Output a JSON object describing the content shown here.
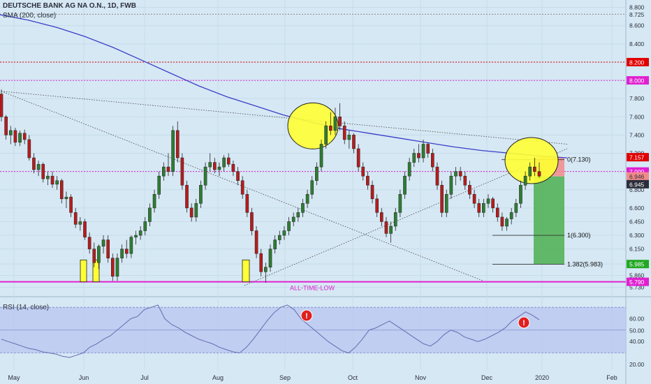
{
  "header": {
    "title": "DEUTSCHE BANK AG NA O.N., 1D, FWB",
    "sma_label": "SMA (200, close)",
    "rsi_label": "RSI (14, close)"
  },
  "colors": {
    "background": "#d6e8f4",
    "candle_up": "#2e7d32",
    "candle_down": "#b71c1c",
    "sma": "#3a3fc8",
    "magenta": "#e020d0",
    "red_level": "#e00000",
    "highlight_yellow": "#ffff33",
    "target_green": "#4caf50",
    "stop_red": "#f28b8b",
    "rsi_line": "#6a6ab0",
    "rsi_band": "#b9c7f0"
  },
  "chart_data": [
    {
      "type": "candlestick",
      "ylim": [
        5.68,
        8.82
      ],
      "y_ticks": [
        "8.800",
        "8.600",
        "8.400",
        "8.200",
        "8.000",
        "7.800",
        "7.600",
        "7.400",
        "7.200",
        "7.000",
        "6.800",
        "6.600",
        "6.450",
        "6.300",
        "6.150",
        "5.985",
        "5.860",
        "5.730"
      ],
      "x_ticks": [
        "May",
        "Jun",
        "Jul",
        "Aug",
        "Sep",
        "Oct",
        "Nov",
        "Dec",
        "2020",
        "Feb"
      ],
      "price_badges": [
        {
          "value": "8.725",
          "style": "plain"
        },
        {
          "value": "8.200",
          "style": "red"
        },
        {
          "value": "8.000",
          "style": "magenta"
        },
        {
          "value": "7.157",
          "style": "red"
        },
        {
          "value": "7.000",
          "style": "magenta"
        },
        {
          "value": "6.946",
          "style": "pink"
        },
        {
          "value": "6.945",
          "style": "dark"
        },
        {
          "value": "5.985",
          "style": "green"
        },
        {
          "value": "5.790",
          "style": "magenta"
        }
      ],
      "horizontal_levels": [
        {
          "price": 8.725,
          "style": "dotted-gray"
        },
        {
          "price": 8.2,
          "style": "dotted-red"
        },
        {
          "price": 8.0,
          "style": "dotted-magenta"
        },
        {
          "price": 7.0,
          "style": "dotted-magenta"
        },
        {
          "price": 5.79,
          "style": "solid-magenta"
        }
      ],
      "fib_labels": [
        {
          "label": "0(7.130)",
          "price": 7.13
        },
        {
          "label": "1(6.300)",
          "price": 6.3
        },
        {
          "label": "1.382(5.983)",
          "price": 5.983
        }
      ],
      "annotation": "ALL-TIME-LOW",
      "candles": [
        [
          7.85,
          7.9,
          7.55,
          7.6
        ],
        [
          7.6,
          7.62,
          7.35,
          7.4
        ],
        [
          7.4,
          7.5,
          7.3,
          7.45
        ],
        [
          7.45,
          7.48,
          7.28,
          7.32
        ],
        [
          7.32,
          7.45,
          7.28,
          7.42
        ],
        [
          7.42,
          7.46,
          7.3,
          7.35
        ],
        [
          7.35,
          7.4,
          7.12,
          7.15
        ],
        [
          7.15,
          7.2,
          6.98,
          7.02
        ],
        [
          7.02,
          7.12,
          6.95,
          7.08
        ],
        [
          7.08,
          7.1,
          6.88,
          6.92
        ],
        [
          6.92,
          7.0,
          6.85,
          6.95
        ],
        [
          6.95,
          7.0,
          6.82,
          6.86
        ],
        [
          6.86,
          6.95,
          6.8,
          6.9
        ],
        [
          6.9,
          6.92,
          6.65,
          6.7
        ],
        [
          6.7,
          6.78,
          6.6,
          6.72
        ],
        [
          6.72,
          6.75,
          6.5,
          6.55
        ],
        [
          6.55,
          6.6,
          6.38,
          6.42
        ],
        [
          6.42,
          6.5,
          6.35,
          6.45
        ],
        [
          6.45,
          6.48,
          6.25,
          6.28
        ],
        [
          6.28,
          6.33,
          6.1,
          6.15
        ],
        [
          6.15,
          6.22,
          5.95,
          6.0
        ],
        [
          6.0,
          6.2,
          5.93,
          6.18
        ],
        [
          6.18,
          6.3,
          6.1,
          6.25
        ],
        [
          6.25,
          6.3,
          6.0,
          6.05
        ],
        [
          6.05,
          6.1,
          5.8,
          5.85
        ],
        [
          5.85,
          6.1,
          5.8,
          6.05
        ],
        [
          6.05,
          6.2,
          6.0,
          6.15
        ],
        [
          6.15,
          6.25,
          6.05,
          6.1
        ],
        [
          6.1,
          6.3,
          6.05,
          6.28
        ],
        [
          6.28,
          6.35,
          6.2,
          6.3
        ],
        [
          6.3,
          6.4,
          6.25,
          6.35
        ],
        [
          6.35,
          6.5,
          6.3,
          6.45
        ],
        [
          6.45,
          6.65,
          6.4,
          6.6
        ],
        [
          6.6,
          6.8,
          6.55,
          6.75
        ],
        [
          6.75,
          7.0,
          6.7,
          6.95
        ],
        [
          6.95,
          7.1,
          6.9,
          7.05
        ],
        [
          7.05,
          7.2,
          6.95,
          7.0
        ],
        [
          7.0,
          7.5,
          6.95,
          7.45
        ],
        [
          7.45,
          7.55,
          7.1,
          7.15
        ],
        [
          7.15,
          7.2,
          6.8,
          6.85
        ],
        [
          6.85,
          6.9,
          6.55,
          6.6
        ],
        [
          6.6,
          6.65,
          6.45,
          6.5
        ],
        [
          6.5,
          6.7,
          6.45,
          6.65
        ],
        [
          6.65,
          6.9,
          6.6,
          6.85
        ],
        [
          6.85,
          7.1,
          6.8,
          7.05
        ],
        [
          7.05,
          7.2,
          7.0,
          7.1
        ],
        [
          7.1,
          7.15,
          6.98,
          7.02
        ],
        [
          7.02,
          7.1,
          6.95,
          7.05
        ],
        [
          7.05,
          7.18,
          7.0,
          7.15
        ],
        [
          7.15,
          7.2,
          7.05,
          7.08
        ],
        [
          7.08,
          7.12,
          6.95,
          7.0
        ],
        [
          7.0,
          7.05,
          6.85,
          6.9
        ],
        [
          6.9,
          6.95,
          6.7,
          6.75
        ],
        [
          6.75,
          6.8,
          6.5,
          6.55
        ],
        [
          6.55,
          6.6,
          6.3,
          6.35
        ],
        [
          6.35,
          6.4,
          6.05,
          6.1
        ],
        [
          6.1,
          6.15,
          5.85,
          5.9
        ],
        [
          5.9,
          6.0,
          5.78,
          5.95
        ],
        [
          5.95,
          6.2,
          5.9,
          6.15
        ],
        [
          6.15,
          6.3,
          6.1,
          6.25
        ],
        [
          6.25,
          6.35,
          6.2,
          6.3
        ],
        [
          6.3,
          6.4,
          6.25,
          6.35
        ],
        [
          6.35,
          6.5,
          6.3,
          6.45
        ],
        [
          6.45,
          6.55,
          6.4,
          6.5
        ],
        [
          6.5,
          6.6,
          6.45,
          6.55
        ],
        [
          6.55,
          6.7,
          6.5,
          6.65
        ],
        [
          6.65,
          6.8,
          6.6,
          6.75
        ],
        [
          6.75,
          6.95,
          6.7,
          6.9
        ],
        [
          6.9,
          7.1,
          6.85,
          7.05
        ],
        [
          7.05,
          7.35,
          7.0,
          7.3
        ],
        [
          7.3,
          7.55,
          7.25,
          7.5
        ],
        [
          7.5,
          7.65,
          7.4,
          7.45
        ],
        [
          7.45,
          7.7,
          7.4,
          7.6
        ],
        [
          7.6,
          7.75,
          7.45,
          7.5
        ],
        [
          7.5,
          7.55,
          7.3,
          7.35
        ],
        [
          7.35,
          7.45,
          7.25,
          7.4
        ],
        [
          7.4,
          7.42,
          7.2,
          7.25
        ],
        [
          7.25,
          7.3,
          7.0,
          7.05
        ],
        [
          7.05,
          7.1,
          6.9,
          6.95
        ],
        [
          6.95,
          7.0,
          6.8,
          6.85
        ],
        [
          6.85,
          6.9,
          6.65,
          6.7
        ],
        [
          6.7,
          6.75,
          6.5,
          6.55
        ],
        [
          6.55,
          6.6,
          6.4,
          6.45
        ],
        [
          6.45,
          6.5,
          6.28,
          6.32
        ],
        [
          6.32,
          6.45,
          6.22,
          6.4
        ],
        [
          6.4,
          6.6,
          6.35,
          6.55
        ],
        [
          6.55,
          6.8,
          6.5,
          6.75
        ],
        [
          6.75,
          7.0,
          6.7,
          6.95
        ],
        [
          6.95,
          7.15,
          6.9,
          7.1
        ],
        [
          7.1,
          7.25,
          7.05,
          7.2
        ],
        [
          7.2,
          7.3,
          7.1,
          7.15
        ],
        [
          7.15,
          7.35,
          7.1,
          7.3
        ],
        [
          7.3,
          7.32,
          7.15,
          7.2
        ],
        [
          7.2,
          7.25,
          7.0,
          7.05
        ],
        [
          7.05,
          7.1,
          6.8,
          6.85
        ],
        [
          6.85,
          6.9,
          6.5,
          6.55
        ],
        [
          6.55,
          6.8,
          6.5,
          6.75
        ],
        [
          6.75,
          7.0,
          6.7,
          6.95
        ],
        [
          6.95,
          7.05,
          6.85,
          7.0
        ],
        [
          7.0,
          7.05,
          6.9,
          6.95
        ],
        [
          6.95,
          7.0,
          6.8,
          6.85
        ],
        [
          6.85,
          6.9,
          6.7,
          6.75
        ],
        [
          6.75,
          6.8,
          6.6,
          6.65
        ],
        [
          6.65,
          6.7,
          6.5,
          6.55
        ],
        [
          6.55,
          6.7,
          6.5,
          6.65
        ],
        [
          6.65,
          6.75,
          6.6,
          6.7
        ],
        [
          6.7,
          6.72,
          6.55,
          6.6
        ],
        [
          6.6,
          6.65,
          6.45,
          6.5
        ],
        [
          6.5,
          6.55,
          6.35,
          6.4
        ],
        [
          6.4,
          6.5,
          6.35,
          6.48
        ],
        [
          6.48,
          6.6,
          6.42,
          6.55
        ],
        [
          6.55,
          6.7,
          6.5,
          6.65
        ],
        [
          6.65,
          6.9,
          6.6,
          6.85
        ],
        [
          6.85,
          7.0,
          6.8,
          6.95
        ],
        [
          6.95,
          7.1,
          6.9,
          7.05
        ],
        [
          7.05,
          7.15,
          6.95,
          7.0
        ],
        [
          7.0,
          7.1,
          6.93,
          6.95
        ]
      ],
      "sma_200": [
        8.72,
        8.66,
        8.58,
        8.48,
        8.36,
        8.22,
        8.08,
        7.94,
        7.82,
        7.72,
        7.62,
        7.54,
        7.47,
        7.42,
        7.37,
        7.32,
        7.27,
        7.23,
        7.2,
        7.17,
        7.15
      ]
    },
    {
      "type": "line",
      "name": "RSI (14, close)",
      "ylim": [
        15,
        75
      ],
      "y_ticks": [
        "60.00",
        "50.00",
        "40.00",
        "20.00"
      ],
      "band": [
        30,
        70
      ],
      "values": [
        42,
        40,
        38,
        36,
        34,
        33,
        31,
        30,
        29,
        27,
        26,
        28,
        30,
        35,
        38,
        42,
        45,
        50,
        55,
        60,
        62,
        68,
        70,
        72,
        60,
        55,
        52,
        48,
        45,
        42,
        40,
        38,
        35,
        33,
        31,
        30,
        35,
        42,
        50,
        58,
        65,
        70,
        72,
        68,
        60,
        55,
        50,
        45,
        40,
        36,
        32,
        30,
        35,
        42,
        50,
        52,
        55,
        58,
        54,
        50,
        46,
        42,
        38,
        36,
        40,
        46,
        50,
        48,
        44,
        42,
        40,
        42,
        45,
        48,
        52,
        58,
        62,
        66,
        63,
        59
      ],
      "alert_markers": [
        "!",
        "!"
      ]
    }
  ]
}
